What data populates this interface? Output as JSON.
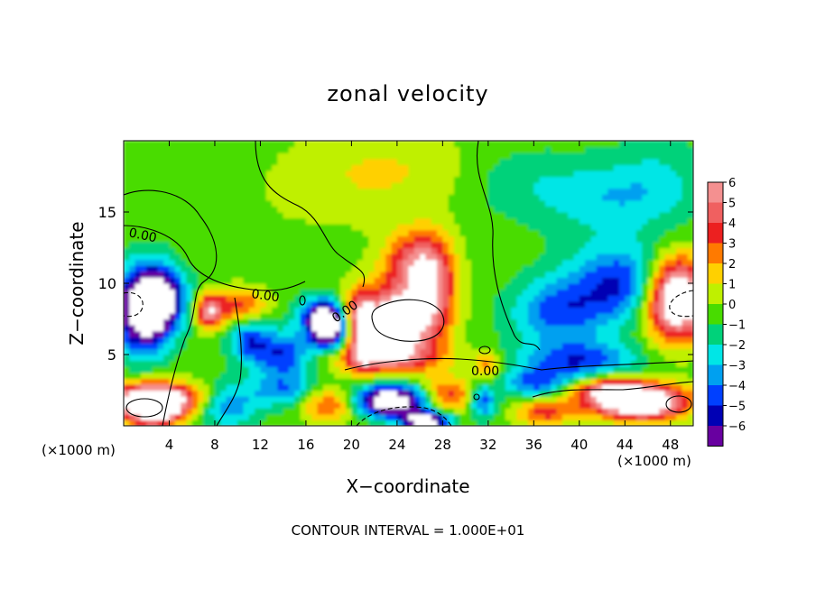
{
  "chart_data": {
    "type": "heatmap",
    "title": "zonal velocity",
    "xlabel": "X−coordinate",
    "ylabel": "Z−coordinate",
    "x_unit_left": "(×1000 m)",
    "x_unit_right": "(×1000 m)",
    "footer": "CONTOUR INTERVAL = 1.000E+01",
    "xlim": [
      0,
      50
    ],
    "ylim": [
      0,
      20
    ],
    "x_ticks": [
      4,
      8,
      12,
      16,
      20,
      24,
      28,
      32,
      36,
      40,
      44,
      48
    ],
    "x_tick_labels": [
      "4",
      "8",
      "12",
      "16",
      "20",
      "24",
      "28",
      "32",
      "36",
      "40",
      "44",
      "48"
    ],
    "y_ticks": [
      5,
      10,
      15
    ],
    "y_tick_labels": [
      "5",
      "10",
      "15"
    ],
    "colorbar": {
      "levels": [
        6,
        5,
        4,
        3,
        2,
        1,
        0,
        -1,
        -2,
        -3,
        -4,
        -5,
        -6
      ],
      "labels": [
        "6",
        "5",
        "4",
        "3",
        "2",
        "1",
        "0",
        "−1",
        "−2",
        "−3",
        "−4",
        "−5",
        "−6"
      ],
      "colors": [
        "#f49090",
        "#f06060",
        "#ec2020",
        "#ff7a00",
        "#ffd000",
        "#bff000",
        "#48dc00",
        "#00d27a",
        "#00e6e6",
        "#00a0f0",
        "#0040ff",
        "#0000b4",
        "#6800a0"
      ]
    },
    "contour_labels": [
      "0.00",
      "0.00",
      "0.00",
      "0.00"
    ],
    "blobs": [
      {
        "x": 17,
        "y": 17,
        "rx": 9,
        "ry": 3.5,
        "v": 0.8
      },
      {
        "x": 24,
        "y": 18,
        "rx": 7,
        "ry": 3,
        "v": 1.2
      },
      {
        "x": 8,
        "y": 18,
        "rx": 7,
        "ry": 3,
        "v": -0.3
      },
      {
        "x": 42,
        "y": 16,
        "rx": 5,
        "ry": 2.5,
        "v": -2.0
      },
      {
        "x": 35,
        "y": 17,
        "rx": 5,
        "ry": 2.5,
        "v": -1.2
      },
      {
        "x": 47,
        "y": 17,
        "rx": 4,
        "ry": 3,
        "v": -1.6
      },
      {
        "x": 44,
        "y": 10,
        "rx": 5,
        "ry": 2.7,
        "v": -4.8
      },
      {
        "x": 38,
        "y": 8,
        "rx": 4,
        "ry": 2.2,
        "v": -3.6
      },
      {
        "x": 40,
        "y": 4.5,
        "rx": 5,
        "ry": 1.5,
        "v": -4.4
      },
      {
        "x": 25.5,
        "y": 11.5,
        "rx": 2.6,
        "ry": 2.2,
        "v": 5.2
      },
      {
        "x": 27.5,
        "y": 10,
        "rx": 1.8,
        "ry": 3,
        "v": 4.0
      },
      {
        "x": 24.2,
        "y": 7.4,
        "rx": 3.4,
        "ry": 2.4,
        "v": 9.0
      },
      {
        "x": 23,
        "y": 4.8,
        "rx": 5,
        "ry": 1.1,
        "v": 4.5
      },
      {
        "x": 21,
        "y": 6.5,
        "rx": 1.2,
        "ry": 2.5,
        "v": 5.0
      },
      {
        "x": 20,
        "y": 8,
        "rx": 1.5,
        "ry": 1.6,
        "v": 2.5
      },
      {
        "x": 17.5,
        "y": 7.8,
        "rx": 2.2,
        "ry": 1.3,
        "v": -5.0
      },
      {
        "x": 14,
        "y": 5,
        "rx": 2.5,
        "ry": 1.6,
        "v": -4.5
      },
      {
        "x": 11,
        "y": 6,
        "rx": 1.8,
        "ry": 1.4,
        "v": -3.8
      },
      {
        "x": 18,
        "y": 6.8,
        "rx": 1.6,
        "ry": 1.4,
        "v": -8.5
      },
      {
        "x": 7.5,
        "y": 8,
        "rx": 1.2,
        "ry": 1.2,
        "v": 5.5
      },
      {
        "x": 10,
        "y": 8.5,
        "rx": 2.5,
        "ry": 1.2,
        "v": 3.8
      },
      {
        "x": 3.5,
        "y": 9,
        "rx": 2,
        "ry": 2,
        "v": -5.5
      },
      {
        "x": 1.8,
        "y": 8.2,
        "rx": 2.3,
        "ry": 2.8,
        "v": -10.0
      },
      {
        "x": 3.5,
        "y": 2,
        "rx": 4.8,
        "ry": 1.1,
        "v": 4.3
      },
      {
        "x": 2.5,
        "y": 1.4,
        "rx": 2.8,
        "ry": 1.3,
        "v": 10.0
      },
      {
        "x": 9,
        "y": 1.5,
        "rx": 2.5,
        "ry": 1.5,
        "v": -3.8
      },
      {
        "x": 14,
        "y": 2.5,
        "rx": 3,
        "ry": 1.2,
        "v": -3.2
      },
      {
        "x": 18,
        "y": 1.5,
        "rx": 2.5,
        "ry": 1.2,
        "v": 4.0
      },
      {
        "x": 23.5,
        "y": 1.8,
        "rx": 3.2,
        "ry": 1.1,
        "v": -9.5
      },
      {
        "x": 28.5,
        "y": 2.2,
        "rx": 2.6,
        "ry": 1.2,
        "v": 4.2
      },
      {
        "x": 31.5,
        "y": 1.8,
        "rx": 1.2,
        "ry": 1.2,
        "v": -4.5
      },
      {
        "x": 26.5,
        "y": 0.4,
        "rx": 2,
        "ry": 0.6,
        "v": -9.0
      },
      {
        "x": 37,
        "y": 1,
        "rx": 2.5,
        "ry": 1,
        "v": 4.0
      },
      {
        "x": 42.5,
        "y": 2.5,
        "rx": 3,
        "ry": 1.1,
        "v": 5.5
      },
      {
        "x": 45.5,
        "y": 1.7,
        "rx": 4,
        "ry": 1.2,
        "v": 10.0
      },
      {
        "x": 48.5,
        "y": 9,
        "rx": 2.8,
        "ry": 2.8,
        "v": 11.0
      },
      {
        "x": 36,
        "y": 3,
        "rx": 2.5,
        "ry": 1,
        "v": -3.5
      },
      {
        "x": 32,
        "y": 4.2,
        "rx": 1.2,
        "ry": 1,
        "v": 3.0
      }
    ]
  }
}
